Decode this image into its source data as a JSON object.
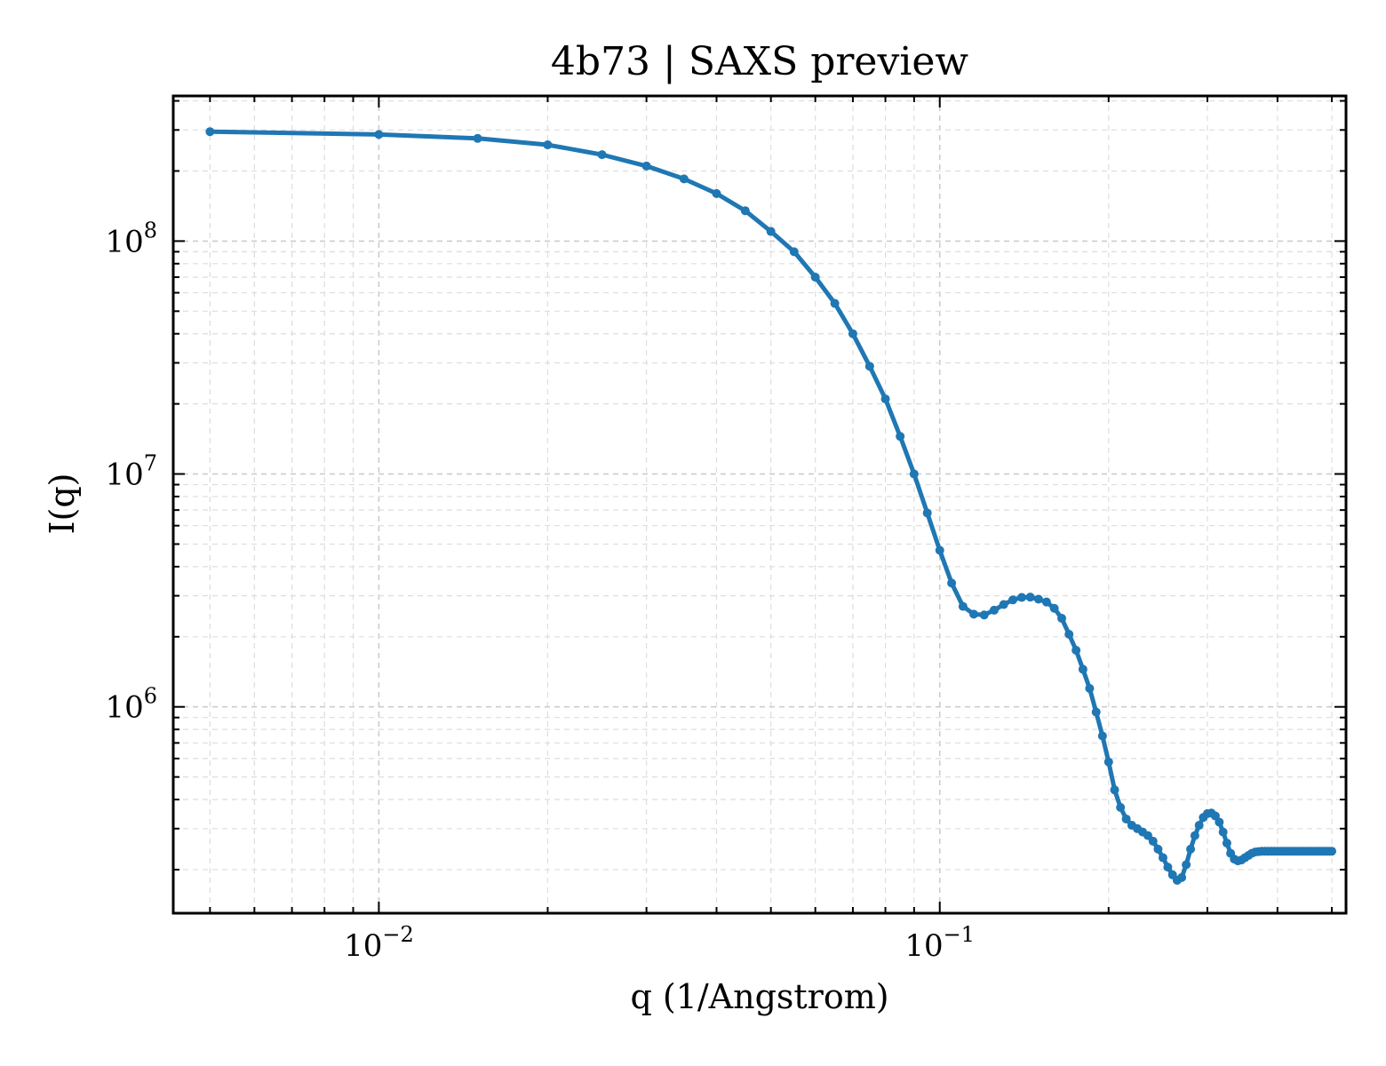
{
  "chart_data": {
    "type": "line",
    "title": "4b73 | SAXS preview",
    "xlabel": "q (1/Angstrom)",
    "ylabel": "I(q)",
    "xscale": "log",
    "yscale": "log",
    "xlim": [
      0.0043,
      0.53
    ],
    "ylim": [
      130000,
      420000000
    ],
    "grid": true,
    "line_color": "#1f77b4",
    "x_ticks": [
      {
        "value": 0.01,
        "base": "10",
        "exp": "−2"
      },
      {
        "value": 0.1,
        "base": "10",
        "exp": "−1"
      }
    ],
    "y_ticks": [
      {
        "value": 1000000,
        "base": "10",
        "exp": "6"
      },
      {
        "value": 10000000,
        "base": "10",
        "exp": "7"
      },
      {
        "value": 100000000,
        "base": "10",
        "exp": "8"
      }
    ],
    "series": [
      {
        "x": [
          0.005,
          0.01,
          0.015,
          0.02,
          0.025,
          0.03,
          0.035,
          0.04,
          0.045,
          0.05,
          0.055,
          0.06,
          0.065,
          0.07,
          0.075,
          0.08,
          0.085,
          0.09,
          0.095,
          0.1,
          0.105,
          0.11,
          0.115,
          0.12,
          0.125,
          0.13,
          0.135,
          0.14,
          0.145,
          0.15,
          0.155,
          0.16,
          0.165,
          0.17,
          0.175,
          0.18,
          0.185,
          0.19,
          0.195,
          0.2,
          0.205,
          0.21,
          0.215,
          0.22,
          0.225,
          0.23,
          0.235,
          0.24,
          0.245,
          0.25,
          0.255,
          0.26,
          0.265,
          0.27,
          0.275,
          0.28,
          0.285,
          0.29,
          0.295,
          0.3,
          0.305,
          0.31,
          0.315,
          0.32,
          0.325,
          0.33,
          0.335,
          0.34,
          0.345,
          0.35,
          0.355,
          0.36,
          0.365,
          0.37,
          0.375,
          0.38,
          0.385,
          0.39,
          0.395,
          0.4,
          0.405,
          0.41,
          0.415,
          0.42,
          0.425,
          0.43,
          0.435,
          0.44,
          0.445,
          0.45,
          0.455,
          0.46,
          0.465,
          0.47,
          0.475,
          0.48,
          0.485,
          0.49,
          0.495,
          0.5
        ],
        "y": [
          295000000,
          287000000,
          276000000,
          259000000,
          235000000,
          210000000,
          185000000,
          160000000,
          135000000,
          110000000,
          90000000,
          70000000,
          54000000,
          40000000,
          29000000,
          21000000,
          14500000,
          10000000,
          6800000,
          4700000,
          3400000,
          2700000,
          2500000,
          2480000,
          2600000,
          2750000,
          2880000,
          2950000,
          2960000,
          2900000,
          2820000,
          2650000,
          2400000,
          2050000,
          1750000,
          1450000,
          1200000,
          950000,
          750000,
          580000,
          440000,
          370000,
          330000,
          310000,
          300000,
          290000,
          280000,
          265000,
          245000,
          225000,
          205000,
          190000,
          180000,
          185000,
          210000,
          245000,
          280000,
          310000,
          335000,
          348000,
          350000,
          340000,
          320000,
          290000,
          260000,
          235000,
          222000,
          218000,
          220000,
          225000,
          230000,
          235000,
          238000,
          239000,
          240000,
          240000,
          240000,
          240000,
          240000,
          240000,
          240000,
          240000,
          240000,
          240000,
          240000,
          240000,
          240000,
          240000,
          240000,
          240000,
          240000,
          240000,
          240000,
          240000,
          240000,
          240000,
          240000,
          240000,
          240000,
          240000
        ]
      }
    ]
  }
}
